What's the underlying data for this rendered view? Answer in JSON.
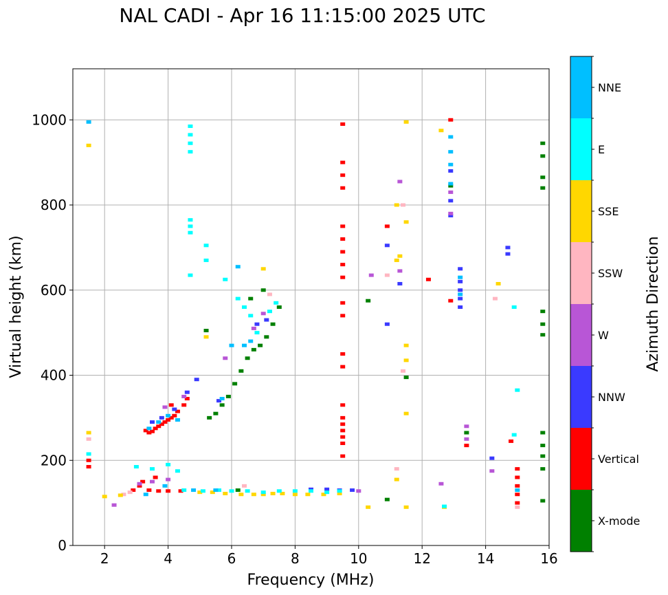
{
  "chart_data": {
    "type": "scatter",
    "title": "NAL CADI - Apr 16 11:15:00 2025 UTC",
    "xlabel": "Frequency (MHz)",
    "ylabel": "Virtual height (km)",
    "xlim": [
      1,
      16
    ],
    "ylim": [
      0,
      1120
    ],
    "xticks": [
      2,
      4,
      6,
      8,
      10,
      12,
      14,
      16
    ],
    "yticks": [
      0,
      200,
      400,
      600,
      800,
      1000
    ],
    "grid": true,
    "colorbar": {
      "label": "Azimuth Direction",
      "categories": [
        {
          "name": "X-mode",
          "color": "#008000"
        },
        {
          "name": "Vertical",
          "color": "#ff0000"
        },
        {
          "name": "NNW",
          "color": "#3a3aff"
        },
        {
          "name": "W",
          "color": "#b856d6"
        },
        {
          "name": "SSW",
          "color": "#ffb6c1"
        },
        {
          "name": "SSE",
          "color": "#ffd700"
        },
        {
          "name": "E",
          "color": "#00ffff"
        },
        {
          "name": "NNE",
          "color": "#00bfff"
        }
      ]
    },
    "series": [
      {
        "name": "Vertical",
        "points": [
          [
            3.3,
            270
          ],
          [
            3.4,
            265
          ],
          [
            3.5,
            268
          ],
          [
            3.6,
            275
          ],
          [
            3.7,
            280
          ],
          [
            3.8,
            285
          ],
          [
            3.9,
            290
          ],
          [
            4.0,
            295
          ],
          [
            4.1,
            300
          ],
          [
            4.2,
            305
          ],
          [
            4.3,
            315
          ],
          [
            4.5,
            330
          ],
          [
            4.6,
            345
          ],
          [
            3.1,
            140
          ],
          [
            3.4,
            130
          ],
          [
            3.7,
            128
          ],
          [
            4.0,
            128
          ],
          [
            4.4,
            128
          ],
          [
            2.9,
            130
          ],
          [
            3.2,
            150
          ],
          [
            3.6,
            160
          ],
          [
            4.1,
            330
          ],
          [
            9.5,
            990
          ],
          [
            9.5,
            900
          ],
          [
            9.5,
            870
          ],
          [
            9.5,
            840
          ],
          [
            9.5,
            750
          ],
          [
            9.5,
            720
          ],
          [
            9.5,
            690
          ],
          [
            9.5,
            660
          ],
          [
            9.5,
            630
          ],
          [
            9.5,
            570
          ],
          [
            9.5,
            540
          ],
          [
            9.5,
            450
          ],
          [
            9.5,
            420
          ],
          [
            9.5,
            330
          ],
          [
            9.5,
            300
          ],
          [
            9.5,
            285
          ],
          [
            9.5,
            270
          ],
          [
            9.5,
            255
          ],
          [
            9.5,
            240
          ],
          [
            9.5,
            210
          ],
          [
            12.9,
            1000
          ],
          [
            12.9,
            575
          ],
          [
            15.0,
            180
          ],
          [
            15.0,
            160
          ],
          [
            15.0,
            140
          ],
          [
            15.0,
            120
          ],
          [
            15.0,
            100
          ],
          [
            14.8,
            245
          ],
          [
            13.4,
            235
          ],
          [
            12.2,
            625
          ],
          [
            10.9,
            750
          ],
          [
            1.5,
            200
          ],
          [
            1.5,
            185
          ]
        ]
      },
      {
        "name": "X-mode",
        "points": [
          [
            5.3,
            300
          ],
          [
            5.5,
            310
          ],
          [
            5.7,
            330
          ],
          [
            5.9,
            350
          ],
          [
            6.1,
            380
          ],
          [
            6.3,
            410
          ],
          [
            6.5,
            440
          ],
          [
            6.7,
            460
          ],
          [
            6.9,
            470
          ],
          [
            7.1,
            490
          ],
          [
            7.3,
            520
          ],
          [
            7.5,
            560
          ],
          [
            7.0,
            600
          ],
          [
            6.6,
            580
          ],
          [
            5.2,
            505
          ],
          [
            10.3,
            575
          ],
          [
            11.5,
            395
          ],
          [
            13.4,
            265
          ],
          [
            10.9,
            108
          ],
          [
            15.8,
            945
          ],
          [
            15.8,
            915
          ],
          [
            15.8,
            865
          ],
          [
            15.8,
            840
          ],
          [
            15.8,
            550
          ],
          [
            15.8,
            520
          ],
          [
            15.8,
            495
          ],
          [
            15.8,
            265
          ],
          [
            15.8,
            235
          ],
          [
            15.8,
            210
          ],
          [
            15.8,
            180
          ],
          [
            15.8,
            105
          ],
          [
            6.2,
            130
          ],
          [
            12.9,
            845
          ]
        ]
      },
      {
        "name": "NNW",
        "points": [
          [
            3.5,
            290
          ],
          [
            3.8,
            300
          ],
          [
            4.2,
            320
          ],
          [
            4.6,
            360
          ],
          [
            4.9,
            390
          ],
          [
            5.6,
            340
          ],
          [
            13.2,
            650
          ],
          [
            13.2,
            620
          ],
          [
            13.2,
            600
          ],
          [
            13.2,
            580
          ],
          [
            13.2,
            560
          ],
          [
            12.9,
            880
          ],
          [
            12.9,
            810
          ],
          [
            12.9,
            775
          ],
          [
            14.7,
            700
          ],
          [
            14.7,
            685
          ],
          [
            14.2,
            205
          ],
          [
            11.3,
            615
          ],
          [
            10.9,
            520
          ],
          [
            10.9,
            705
          ],
          [
            8.5,
            132
          ],
          [
            9.0,
            132
          ],
          [
            9.4,
            130
          ],
          [
            9.8,
            130
          ],
          [
            6.8,
            520
          ],
          [
            7.1,
            530
          ]
        ]
      },
      {
        "name": "W",
        "points": [
          [
            3.1,
            145
          ],
          [
            3.5,
            150
          ],
          [
            4.0,
            155
          ],
          [
            4.5,
            350
          ],
          [
            3.9,
            325
          ],
          [
            2.3,
            95
          ],
          [
            13.4,
            280
          ],
          [
            13.4,
            250
          ],
          [
            12.9,
            780
          ],
          [
            12.9,
            830
          ],
          [
            12.6,
            145
          ],
          [
            14.2,
            175
          ],
          [
            11.3,
            855
          ],
          [
            10.4,
            635
          ],
          [
            11.3,
            645
          ],
          [
            10.0,
            128
          ],
          [
            5.8,
            440
          ],
          [
            6.7,
            510
          ],
          [
            7.0,
            545
          ]
        ]
      },
      {
        "name": "SSW",
        "points": [
          [
            1.5,
            250
          ],
          [
            2.6,
            120
          ],
          [
            2.8,
            125
          ],
          [
            6.4,
            140
          ],
          [
            11.4,
            800
          ],
          [
            11.4,
            410
          ],
          [
            11.2,
            180
          ],
          [
            10.9,
            635
          ],
          [
            14.3,
            580
          ],
          [
            15.0,
            90
          ],
          [
            7.2,
            590
          ]
        ]
      },
      {
        "name": "SSE",
        "points": [
          [
            1.5,
            940
          ],
          [
            1.5,
            265
          ],
          [
            2.0,
            115
          ],
          [
            2.5,
            118
          ],
          [
            5.0,
            125
          ],
          [
            5.4,
            125
          ],
          [
            5.8,
            122
          ],
          [
            6.3,
            120
          ],
          [
            6.7,
            120
          ],
          [
            7.0,
            120
          ],
          [
            7.3,
            122
          ],
          [
            7.6,
            122
          ],
          [
            8.0,
            120
          ],
          [
            8.4,
            120
          ],
          [
            8.9,
            120
          ],
          [
            9.4,
            122
          ],
          [
            11.2,
            800
          ],
          [
            11.2,
            670
          ],
          [
            11.3,
            680
          ],
          [
            11.5,
            760
          ],
          [
            11.5,
            470
          ],
          [
            11.5,
            435
          ],
          [
            11.5,
            310
          ],
          [
            11.5,
            995
          ],
          [
            11.2,
            155
          ],
          [
            11.5,
            90
          ],
          [
            10.3,
            90
          ],
          [
            12.6,
            975
          ],
          [
            12.7,
            90
          ],
          [
            14.4,
            615
          ],
          [
            7.0,
            650
          ],
          [
            5.2,
            490
          ]
        ]
      },
      {
        "name": "E",
        "points": [
          [
            4.7,
            985
          ],
          [
            4.7,
            965
          ],
          [
            4.7,
            945
          ],
          [
            4.7,
            925
          ],
          [
            4.7,
            765
          ],
          [
            4.7,
            750
          ],
          [
            4.7,
            735
          ],
          [
            4.7,
            635
          ],
          [
            5.2,
            705
          ],
          [
            5.2,
            670
          ],
          [
            3.0,
            185
          ],
          [
            3.5,
            180
          ],
          [
            4.0,
            190
          ],
          [
            4.3,
            175
          ],
          [
            4.5,
            130
          ],
          [
            5.1,
            128
          ],
          [
            5.6,
            130
          ],
          [
            6.0,
            128
          ],
          [
            6.5,
            128
          ],
          [
            7.0,
            125
          ],
          [
            7.5,
            128
          ],
          [
            8.0,
            128
          ],
          [
            8.5,
            128
          ],
          [
            9.0,
            125
          ],
          [
            9.4,
            128
          ],
          [
            15.0,
            365
          ],
          [
            14.9,
            260
          ],
          [
            14.9,
            560
          ],
          [
            6.2,
            580
          ],
          [
            6.4,
            560
          ],
          [
            6.6,
            540
          ],
          [
            6.8,
            500
          ],
          [
            7.2,
            550
          ],
          [
            7.4,
            570
          ],
          [
            12.7,
            92
          ],
          [
            5.8,
            625
          ],
          [
            1.5,
            215
          ]
        ]
      },
      {
        "name": "NNE",
        "points": [
          [
            3.4,
            275
          ],
          [
            3.7,
            290
          ],
          [
            4.0,
            305
          ],
          [
            4.3,
            295
          ],
          [
            3.9,
            140
          ],
          [
            3.3,
            120
          ],
          [
            4.8,
            130
          ],
          [
            5.5,
            130
          ],
          [
            6.0,
            470
          ],
          [
            6.4,
            470
          ],
          [
            6.6,
            480
          ],
          [
            12.9,
            960
          ],
          [
            12.9,
            925
          ],
          [
            12.9,
            895
          ],
          [
            12.9,
            850
          ],
          [
            13.2,
            590
          ],
          [
            13.2,
            630
          ],
          [
            15.0,
            130
          ],
          [
            5.7,
            345
          ],
          [
            6.2,
            655
          ],
          [
            1.5,
            995
          ]
        ]
      }
    ]
  }
}
